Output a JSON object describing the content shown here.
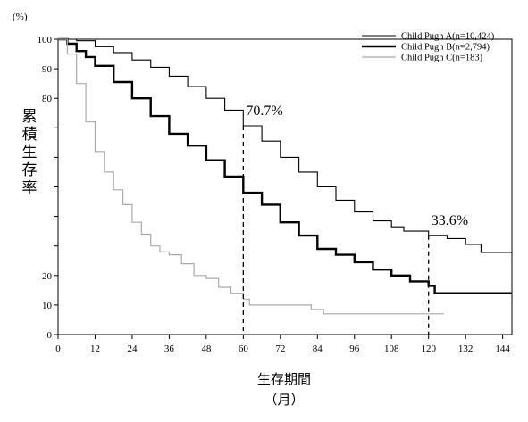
{
  "chart_data": {
    "type": "line",
    "title": "",
    "ylabel": "累積生存率",
    "yunit": "(%)",
    "xlabel": "生存期間",
    "xunit": "（月）",
    "xlim": [
      0,
      147
    ],
    "ylim": [
      0,
      100
    ],
    "xticks": [
      0,
      12,
      24,
      36,
      48,
      60,
      72,
      84,
      96,
      108,
      120,
      132,
      144
    ],
    "yticks_labeled": [
      0,
      10,
      20,
      80,
      90,
      100
    ],
    "yticks_unlabeled": [
      30,
      40,
      50,
      60,
      70
    ],
    "legend_position": "top-right",
    "series": [
      {
        "name": "Child Pugh A(n=10,424)",
        "color": "#000000",
        "width": 1.1,
        "points": [
          [
            0,
            100
          ],
          [
            6,
            99.5
          ],
          [
            12,
            97.5
          ],
          [
            18,
            95.5
          ],
          [
            24,
            93
          ],
          [
            30,
            90.5
          ],
          [
            36,
            87.5
          ],
          [
            42,
            84
          ],
          [
            48,
            80
          ],
          [
            54,
            76
          ],
          [
            60,
            70.7
          ],
          [
            66,
            65.5
          ],
          [
            72,
            60
          ],
          [
            78,
            55
          ],
          [
            84,
            50
          ],
          [
            90,
            45.5
          ],
          [
            96,
            41.5
          ],
          [
            102,
            38.5
          ],
          [
            108,
            36.5
          ],
          [
            112,
            35
          ],
          [
            120,
            33.6
          ],
          [
            126,
            32.5
          ],
          [
            132,
            30.5
          ],
          [
            137,
            27.8
          ],
          [
            147,
            27.8
          ]
        ]
      },
      {
        "name": "Child Pugh B(n=2,794)",
        "color": "#000000",
        "width": 2.4,
        "points": [
          [
            0,
            100
          ],
          [
            3,
            98.5
          ],
          [
            6,
            96
          ],
          [
            9,
            94
          ],
          [
            12,
            91
          ],
          [
            18,
            85.5
          ],
          [
            24,
            80
          ],
          [
            30,
            74
          ],
          [
            36,
            68
          ],
          [
            42,
            64
          ],
          [
            48,
            59
          ],
          [
            54,
            53.5
          ],
          [
            60,
            48
          ],
          [
            66,
            44
          ],
          [
            72,
            38
          ],
          [
            78,
            33.5
          ],
          [
            84,
            29
          ],
          [
            90,
            27
          ],
          [
            96,
            24.5
          ],
          [
            102,
            22
          ],
          [
            108,
            20
          ],
          [
            114,
            18
          ],
          [
            120,
            16.5
          ],
          [
            122,
            14
          ],
          [
            135,
            14
          ],
          [
            147,
            14
          ]
        ]
      },
      {
        "name": "Child Pugh C(n=183)",
        "color": "#aaaaaa",
        "width": 1.2,
        "points": [
          [
            0,
            100
          ],
          [
            3,
            95
          ],
          [
            6,
            85
          ],
          [
            9,
            72
          ],
          [
            12,
            62
          ],
          [
            15,
            55
          ],
          [
            18,
            49
          ],
          [
            21,
            44
          ],
          [
            24,
            38
          ],
          [
            27,
            34
          ],
          [
            30,
            30
          ],
          [
            33,
            28
          ],
          [
            36,
            27
          ],
          [
            40,
            24
          ],
          [
            44,
            20
          ],
          [
            48,
            19
          ],
          [
            52,
            16
          ],
          [
            56,
            14
          ],
          [
            60,
            12
          ],
          [
            62,
            10
          ],
          [
            64,
            10
          ],
          [
            70,
            10
          ],
          [
            76,
            10
          ],
          [
            80,
            10
          ],
          [
            82,
            8.5
          ],
          [
            86,
            7
          ],
          [
            90,
            7
          ],
          [
            100,
            7
          ],
          [
            110,
            7
          ],
          [
            120,
            7
          ],
          [
            125,
            7
          ]
        ]
      }
    ],
    "annotations": [
      {
        "text": "70.7%",
        "x": 60,
        "y": 70.7
      },
      {
        "text": "33.6%",
        "x": 120,
        "y": 33.6
      }
    ]
  }
}
